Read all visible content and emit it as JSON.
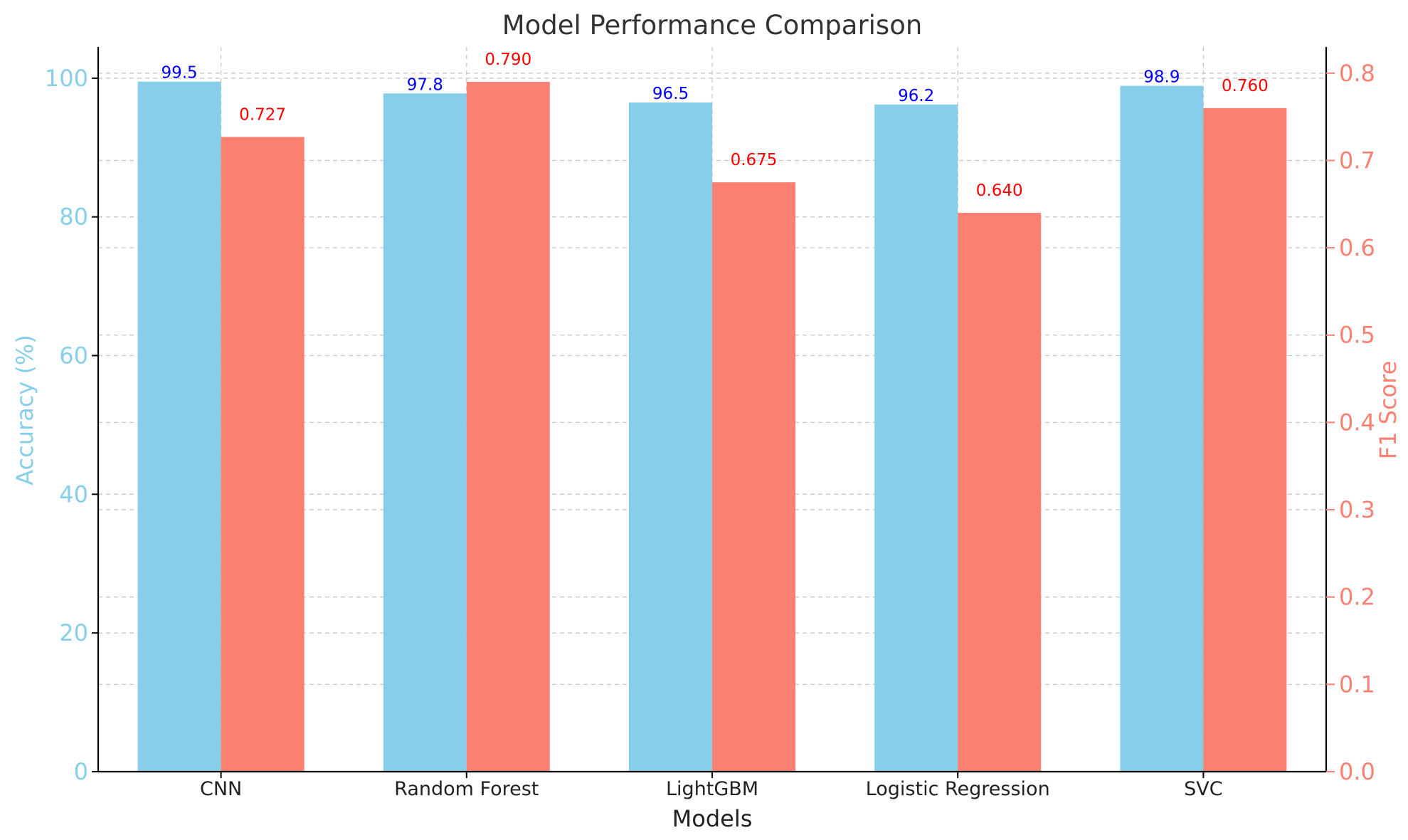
{
  "chart_data": {
    "type": "bar",
    "title": "Model Performance Comparison",
    "xlabel": "Models",
    "categories": [
      "CNN",
      "Random Forest",
      "LightGBM",
      "Logistic Regression",
      "SVC"
    ],
    "series": [
      {
        "name": "Accuracy (%)",
        "axis": "left",
        "color": "#87CEEB",
        "label_color": "#0000FF",
        "values": [
          99.5,
          97.8,
          96.5,
          96.2,
          98.9
        ],
        "labels": [
          "99.5",
          "97.8",
          "96.5",
          "96.2",
          "98.9"
        ]
      },
      {
        "name": "F1 Score",
        "axis": "right",
        "color": "#FA8072",
        "label_color": "#FF0000",
        "values": [
          0.727,
          0.79,
          0.675,
          0.64,
          0.76
        ],
        "labels": [
          "0.727",
          "0.790",
          "0.675",
          "0.640",
          "0.760"
        ]
      }
    ],
    "y_left": {
      "label": "Accuracy (%)",
      "range": [
        0,
        104.5
      ],
      "ticks": [
        0,
        20,
        40,
        60,
        80,
        100
      ],
      "tick_labels": [
        "0",
        "20",
        "40",
        "60",
        "80",
        "100"
      ],
      "color": "#87CEEB"
    },
    "y_right": {
      "label": "F1 Score",
      "range": [
        0,
        0.83
      ],
      "ticks": [
        0.0,
        0.1,
        0.2,
        0.3,
        0.4,
        0.5,
        0.6,
        0.7,
        0.8
      ],
      "tick_labels": [
        "0.0",
        "0.1",
        "0.2",
        "0.3",
        "0.4",
        "0.5",
        "0.6",
        "0.7",
        "0.8"
      ],
      "color": "#FA8072"
    },
    "grid": true,
    "legend": "none"
  }
}
